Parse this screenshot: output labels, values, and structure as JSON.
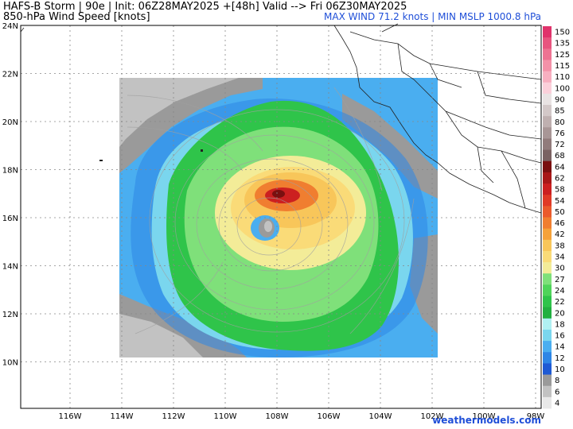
{
  "header": {
    "line1": "HAFS-B Storm | 90e | Init: 06Z28MAY2025 +[48h] Valid --> Fri 06Z30MAY2025",
    "line2": "850-hPa Wind Speed [knots]",
    "summary": "MAX WIND 71.2 knots | MIN MSLP 1000.8 hPa"
  },
  "credit": "weathermodels.com",
  "map": {
    "lat_labels": [
      "24N",
      "22N",
      "20N",
      "18N",
      "16N",
      "14N",
      "12N",
      "10N"
    ],
    "lon_labels": [
      "116W",
      "114W",
      "112W",
      "110W",
      "108W",
      "106W",
      "104W",
      "102W",
      "100W",
      "98W"
    ],
    "storm_center": {
      "lat": 15.4,
      "lon": 108.6
    }
  },
  "colorbar": {
    "labels": [
      "150",
      "135",
      "125",
      "115",
      "110",
      "100",
      "90",
      "85",
      "80",
      "76",
      "72",
      "68",
      "64",
      "62",
      "58",
      "54",
      "50",
      "46",
      "42",
      "38",
      "34",
      "30",
      "27",
      "24",
      "22",
      "20",
      "18",
      "16",
      "14",
      "12",
      "10",
      "8",
      "6",
      "4"
    ],
    "colors": {
      "150": "#e0336b",
      "135": "#e8557f",
      "125": "#ee7392",
      "115": "#f391a8",
      "110": "#f7afc0",
      "100": "#fbd0da",
      "90": "#e9e3e3",
      "85": "#d3c8c8",
      "80": "#bfb0b0",
      "76": "#a89696",
      "72": "#917b7b",
      "68": "#7a6262",
      "64": "#7a1010",
      "62": "#a81818",
      "58": "#cc2020",
      "54": "#e03a26",
      "50": "#ea5a2c",
      "46": "#f07e30",
      "42": "#f5a23a",
      "38": "#f8c65a",
      "34": "#fadb78",
      "30": "#f3ec98",
      "27": "#7fe07a",
      "24": "#4fd45a",
      "22": "#2fc44a",
      "20": "#22b040",
      "18": "#b0f0f2",
      "16": "#7ad6ee",
      "14": "#4aaef0",
      "12": "#2e86e6",
      "10": "#1e5ad4",
      "8": "#9a9a9a",
      "6": "#c2c2c2",
      "4": "#e8e8e8"
    }
  }
}
